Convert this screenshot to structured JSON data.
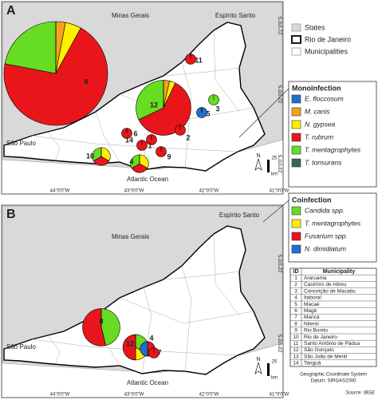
{
  "panel_a": {
    "letter": "A",
    "states": [
      "Minas Gerais",
      "Espírito Santo",
      "São Paulo"
    ],
    "ocean": "Atlantic Ocean",
    "north": "N",
    "scale": "25",
    "scale_unit": "km",
    "pies": [
      {
        "label": "8",
        "values": [
          0,
          3,
          5,
          70,
          22,
          0
        ]
      },
      {
        "label": "12",
        "values": [
          0,
          1,
          1,
          17,
          9,
          0
        ]
      },
      {
        "label": "3",
        "values": [
          0,
          0,
          0,
          0,
          1,
          0
        ]
      },
      {
        "label": "5",
        "values": [
          1,
          0,
          0,
          0,
          0,
          0
        ]
      },
      {
        "label": "11",
        "values": [
          0,
          0,
          0,
          1,
          0,
          0
        ]
      },
      {
        "label": "6",
        "values": [
          0,
          0,
          0,
          1,
          0,
          0
        ]
      },
      {
        "label": "14",
        "values": [
          0,
          0,
          0,
          1,
          0,
          0
        ]
      },
      {
        "label": "1",
        "values": [
          0,
          0,
          0,
          1,
          0,
          0
        ]
      },
      {
        "label": "2",
        "values": [
          0,
          0,
          0,
          1,
          0,
          0
        ]
      },
      {
        "label": "9",
        "values": [
          0,
          0,
          0,
          1,
          0,
          0
        ]
      },
      {
        "label": "10",
        "values": [
          0,
          0,
          1,
          1,
          1,
          0
        ]
      },
      {
        "label": "4",
        "values": [
          0,
          0,
          1,
          1,
          1,
          0
        ]
      }
    ]
  },
  "panel_b": {
    "letter": "B",
    "states": [
      "Minas Gerais",
      "Espírito Santo",
      "São Paulo"
    ],
    "ocean": "Atlantic Ocean",
    "north": "N",
    "scale": "25",
    "scale_unit": "km",
    "pies": [
      {
        "label": "8",
        "values": [
          6,
          0,
          7,
          0
        ]
      },
      {
        "label": "12",
        "values": [
          2,
          1,
          3,
          0
        ]
      },
      {
        "label": "4",
        "values": [
          0,
          0,
          1,
          1
        ]
      },
      {
        "label": "7",
        "values": [
          0,
          0,
          1,
          0
        ]
      }
    ]
  },
  "lat_ticks": [
    "21°0'0\"S",
    "22°0'0\"S",
    "23°0'0\"S"
  ],
  "lon_ticks": [
    "44°0'0\"W",
    "43°0'0\"W",
    "42°0'0\"W",
    "41°0'0\"W"
  ],
  "legend": {
    "states": "States",
    "rio": "Rio de Janeiro",
    "municipalities": "Municipalities"
  },
  "monoinfection": {
    "title": "Monoinfection",
    "series": [
      {
        "name": "E. floccosum",
        "color": "#1f6fd1"
      },
      {
        "name": "M. canis",
        "color": "#f5a21b"
      },
      {
        "name": "N. gypsea",
        "color": "#ffee00"
      },
      {
        "name": "T. rubrum",
        "color": "#e8161b"
      },
      {
        "name": "T. mentagrophytes",
        "color": "#66dd22"
      },
      {
        "name": "T. tonsurans",
        "color": "#2f6b4f"
      }
    ]
  },
  "coinfection": {
    "title": "Coinfection",
    "series": [
      {
        "name": "Candida spp.",
        "color": "#66dd22"
      },
      {
        "name": "T. mentagrophytes",
        "color": "#ffee00"
      },
      {
        "name": "Fusarium spp.",
        "color": "#e8161b"
      },
      {
        "name": "N. dimidiatum",
        "color": "#1f6fd1"
      }
    ]
  },
  "table": {
    "header": [
      "ID",
      "Municipality"
    ],
    "rows": [
      [
        "1",
        "Araruama"
      ],
      [
        "2",
        "Casimiro de Abreu"
      ],
      [
        "3",
        "Conceição de Macabu"
      ],
      [
        "4",
        "Itaboraí"
      ],
      [
        "5",
        "Macaé"
      ],
      [
        "6",
        "Magé"
      ],
      [
        "7",
        "Maricá"
      ],
      [
        "8",
        "Niterói"
      ],
      [
        "9",
        "Rio Bonito"
      ],
      [
        "10",
        "Rio de Janeiro"
      ],
      [
        "11",
        "Santo Antônio de Pádua"
      ],
      [
        "12",
        "São Gonçalo"
      ],
      [
        "13",
        "São João de Meriti"
      ],
      [
        "14",
        "Tanguá"
      ]
    ]
  },
  "footer": [
    "Geographic Coordinate System",
    "Datum: SIRGAS2000",
    "Source: IBGE"
  ]
}
